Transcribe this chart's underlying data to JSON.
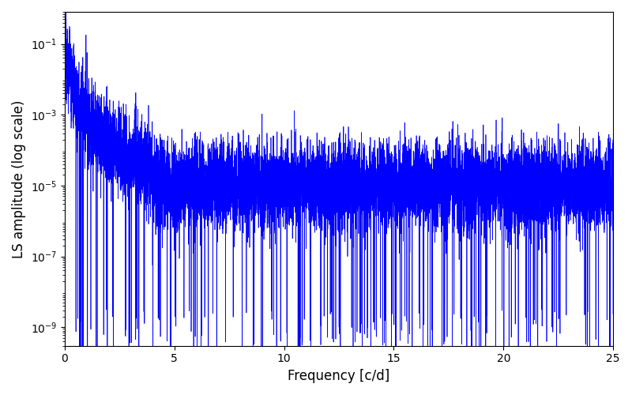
{
  "xlabel": "Frequency [c/d]",
  "ylabel": "LS amplitude (log scale)",
  "xlim": [
    0,
    25
  ],
  "ylim": [
    3e-10,
    0.8
  ],
  "line_color": "#0000ff",
  "line_width": 0.5,
  "figsize": [
    8.0,
    5.0
  ],
  "dpi": 100,
  "freq_max": 25.0,
  "n_points": 10000,
  "seed": 12345,
  "background_color": "#ffffff",
  "yticks": [
    1e-09,
    1e-07,
    1e-05,
    0.001,
    0.1
  ]
}
